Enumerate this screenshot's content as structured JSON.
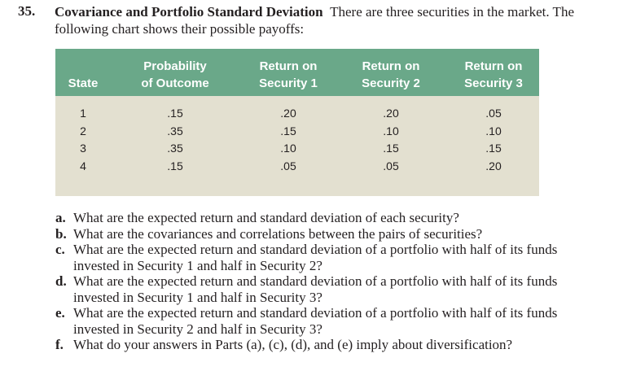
{
  "problem": {
    "number": "35.",
    "title": "Covariance and Portfolio Standard Deviation",
    "intro": "There are three securities in the market. The following chart shows their possible payoffs:"
  },
  "table": {
    "headers": {
      "state": "State",
      "prob_line1": "Probability",
      "prob_line2": "of Outcome",
      "s1_line1": "Return on",
      "s1_line2": "Security 1",
      "s2_line1": "Return on",
      "s2_line2": "Security 2",
      "s3_line1": "Return on",
      "s3_line2": "Security 3"
    },
    "rows": [
      {
        "state": "1",
        "prob": ".15",
        "s1": ".20",
        "s2": ".20",
        "s3": ".05"
      },
      {
        "state": "2",
        "prob": ".35",
        "s1": ".15",
        "s2": ".10",
        "s3": ".10"
      },
      {
        "state": "3",
        "prob": ".35",
        "s1": ".10",
        "s2": ".15",
        "s3": ".15"
      },
      {
        "state": "4",
        "prob": ".15",
        "s1": ".05",
        "s2": ".05",
        "s3": ".20"
      }
    ]
  },
  "questions": [
    {
      "label": "a.",
      "text": "What are the expected return and standard deviation of each security?"
    },
    {
      "label": "b.",
      "text": "What are the covariances and correlations between the pairs of securities?"
    },
    {
      "label": "c.",
      "text": "What are the expected return and standard deviation of a portfolio with half of its funds invested in Security 1 and half in Security 2?"
    },
    {
      "label": "d.",
      "text": "What are the expected return and standard deviation of a portfolio with half of its funds invested in Security 1 and half in Security 3?"
    },
    {
      "label": "e.",
      "text": "What are the expected return and standard deviation of a portfolio with half of its funds invested in Security 2 and half in Security 3?"
    },
    {
      "label": "f.",
      "text": "What do your answers in Parts (a), (c), (d), and (e) imply about diversification?"
    }
  ],
  "colors": {
    "header_bg": "#6aa889",
    "table_bg": "#e3e0d0",
    "header_text": "#ffffff"
  }
}
